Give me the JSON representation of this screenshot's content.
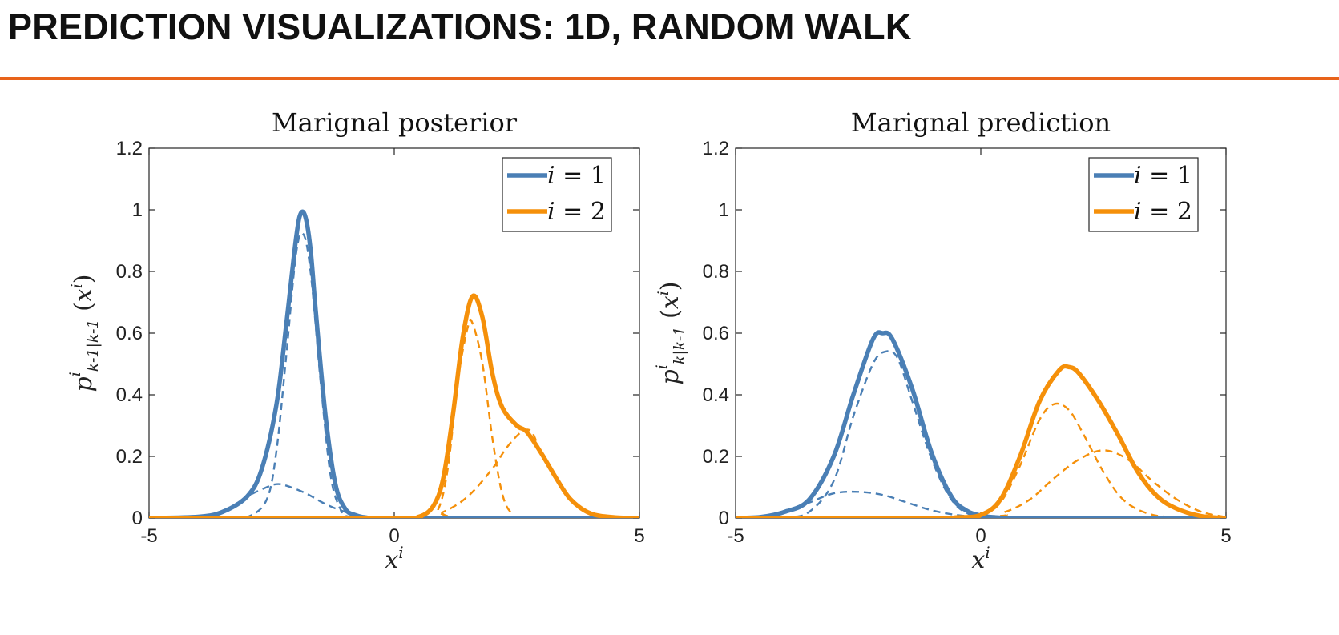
{
  "slide": {
    "title": "PREDICTION VISUALIZATIONS: 1D, RANDOM WALK",
    "accent_color": "#e8631a"
  },
  "chart_data": [
    {
      "type": "line",
      "title": "Marignal posterior",
      "xlabel": "x^i",
      "ylabel": "p^i_{k-1|k-1}(x^i)",
      "xlim": [
        -5,
        5
      ],
      "ylim": [
        0,
        1.2
      ],
      "xticks": [
        "-5",
        "0",
        "5"
      ],
      "yticks": [
        "0",
        "0.2",
        "0.4",
        "0.6",
        "0.8",
        "1",
        "1.2"
      ],
      "grid": false,
      "legend_position": "top-right",
      "series": [
        {
          "name": "i = 1",
          "color": "#4a7fb5",
          "style": "solid",
          "x": [
            -5,
            -4,
            -3.5,
            -3,
            -2.7,
            -2.4,
            -2.2,
            -2.0,
            -1.9,
            -1.8,
            -1.7,
            -1.6,
            -1.4,
            -1.2,
            -1.0,
            -0.8,
            -0.5,
            0,
            5
          ],
          "y": [
            0.0,
            0.004,
            0.02,
            0.07,
            0.16,
            0.37,
            0.63,
            0.91,
            0.99,
            0.97,
            0.86,
            0.67,
            0.33,
            0.11,
            0.03,
            0.01,
            0.0,
            0.0,
            0.0
          ]
        },
        {
          "name": "i = 2",
          "color": "#f5900a",
          "style": "solid",
          "x": [
            -5,
            0,
            0.5,
            0.8,
            1.0,
            1.2,
            1.4,
            1.6,
            1.8,
            2.0,
            2.2,
            2.5,
            2.7,
            3.0,
            3.3,
            3.6,
            4.0,
            4.5,
            5
          ],
          "y": [
            0.0,
            0.0,
            0.004,
            0.04,
            0.13,
            0.34,
            0.59,
            0.72,
            0.65,
            0.47,
            0.36,
            0.3,
            0.28,
            0.21,
            0.13,
            0.06,
            0.015,
            0.002,
            0.0
          ]
        },
        {
          "color": "#4a7fb5",
          "style": "dashed",
          "x": [
            -5,
            -3.5,
            -3.0,
            -2.6,
            -2.4,
            -2.2,
            -2.0,
            -1.85,
            -1.7,
            -1.5,
            -1.3,
            -1.1,
            -0.9,
            0,
            5
          ],
          "y": [
            0.0,
            0.0,
            0.003,
            0.06,
            0.22,
            0.53,
            0.86,
            0.92,
            0.79,
            0.44,
            0.14,
            0.03,
            0.004,
            0.0,
            0.0
          ]
        },
        {
          "color": "#4a7fb5",
          "style": "dashed",
          "x": [
            -5,
            -4,
            -3.5,
            -3.0,
            -2.6,
            -2.4,
            -2.2,
            -1.8,
            -1.4,
            -1.0,
            -0.6,
            -0.3,
            0,
            5
          ],
          "y": [
            0.0,
            0.005,
            0.02,
            0.07,
            0.1,
            0.11,
            0.105,
            0.08,
            0.045,
            0.02,
            0.006,
            0.0015,
            0.0,
            0.0
          ]
        },
        {
          "color": "#f5900a",
          "style": "dashed",
          "x": [
            -5,
            0.6,
            0.9,
            1.1,
            1.3,
            1.5,
            1.6,
            1.8,
            2.0,
            2.2,
            2.4,
            2.7,
            5
          ],
          "y": [
            0.0,
            0.0,
            0.03,
            0.17,
            0.45,
            0.62,
            0.63,
            0.5,
            0.26,
            0.08,
            0.015,
            0.001,
            0.0
          ]
        },
        {
          "color": "#f5900a",
          "style": "dashed",
          "x": [
            -5,
            0.5,
            1.0,
            1.5,
            2.0,
            2.3,
            2.6,
            2.8,
            3.0,
            3.3,
            3.6,
            4.0,
            4.5,
            5
          ],
          "y": [
            0.0,
            0.002,
            0.02,
            0.07,
            0.16,
            0.23,
            0.28,
            0.28,
            0.21,
            0.13,
            0.06,
            0.015,
            0.002,
            0.0
          ]
        }
      ]
    },
    {
      "type": "line",
      "title": "Marignal prediction",
      "xlabel": "x^i",
      "ylabel": "p^i_{k|k-1}(x^i)",
      "xlim": [
        -5,
        5
      ],
      "ylim": [
        0,
        1.2
      ],
      "xticks": [
        "-5",
        "0",
        "5"
      ],
      "yticks": [
        "0",
        "0.2",
        "0.4",
        "0.6",
        "0.8",
        "1",
        "1.2"
      ],
      "grid": false,
      "legend_position": "top-right",
      "series": [
        {
          "name": "i = 1",
          "color": "#4a7fb5",
          "style": "solid",
          "x": [
            -5,
            -4.5,
            -4.0,
            -3.5,
            -3.0,
            -2.6,
            -2.2,
            -2.0,
            -1.8,
            -1.4,
            -1.0,
            -0.6,
            -0.3,
            0,
            0.4,
            1.0,
            5
          ],
          "y": [
            0.0,
            0.003,
            0.02,
            0.06,
            0.2,
            0.4,
            0.58,
            0.6,
            0.58,
            0.42,
            0.21,
            0.07,
            0.025,
            0.008,
            0.001,
            0.0,
            0.0
          ]
        },
        {
          "name": "i = 2",
          "color": "#f5900a",
          "style": "solid",
          "x": [
            -5,
            -1.0,
            -0.5,
            0,
            0.4,
            0.8,
            1.2,
            1.6,
            1.8,
            2.0,
            2.4,
            2.8,
            3.2,
            3.6,
            4.0,
            4.5,
            5
          ],
          "y": [
            0.0,
            0.0,
            0.002,
            0.01,
            0.06,
            0.2,
            0.38,
            0.48,
            0.49,
            0.47,
            0.38,
            0.27,
            0.15,
            0.07,
            0.03,
            0.006,
            0.0
          ]
        },
        {
          "color": "#4a7fb5",
          "style": "dashed",
          "x": [
            -5,
            -4.0,
            -3.5,
            -3.0,
            -2.6,
            -2.2,
            -1.95,
            -1.7,
            -1.4,
            -1.0,
            -0.6,
            -0.2,
            0.3,
            5
          ],
          "y": [
            0.0,
            0.003,
            0.02,
            0.12,
            0.33,
            0.5,
            0.54,
            0.52,
            0.38,
            0.19,
            0.06,
            0.01,
            0.001,
            0.0
          ]
        },
        {
          "color": "#4a7fb5",
          "style": "dashed",
          "x": [
            -5,
            -4.5,
            -4.0,
            -3.5,
            -3.0,
            -2.5,
            -2.0,
            -1.5,
            -1.0,
            -0.5,
            0,
            0.5,
            5
          ],
          "y": [
            0.0,
            0.005,
            0.02,
            0.05,
            0.08,
            0.085,
            0.075,
            0.05,
            0.025,
            0.01,
            0.003,
            0.0,
            0.0
          ]
        },
        {
          "color": "#f5900a",
          "style": "dashed",
          "x": [
            -5,
            -0.5,
            0,
            0.4,
            0.8,
            1.2,
            1.5,
            1.8,
            2.1,
            2.5,
            2.9,
            3.4,
            4.0,
            5
          ],
          "y": [
            0.0,
            0.001,
            0.01,
            0.05,
            0.17,
            0.32,
            0.37,
            0.35,
            0.27,
            0.15,
            0.06,
            0.015,
            0.002,
            0.0
          ]
        },
        {
          "color": "#f5900a",
          "style": "dashed",
          "x": [
            -5,
            0,
            0.5,
            1.0,
            1.5,
            2.0,
            2.5,
            3.0,
            3.5,
            4.0,
            4.5,
            5
          ],
          "y": [
            0.0,
            0.005,
            0.02,
            0.06,
            0.13,
            0.19,
            0.22,
            0.19,
            0.12,
            0.06,
            0.02,
            0.003
          ]
        }
      ]
    }
  ]
}
